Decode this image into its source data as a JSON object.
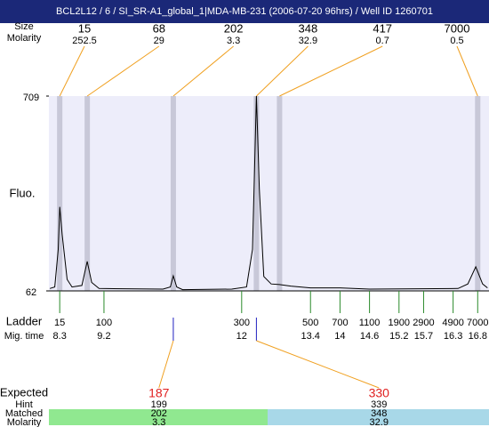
{
  "chart_data": {
    "type": "line",
    "title": "BCL2L12 / 6 / SI_SR-A1_global_1|MDA-MB-231 (2006-07-20 96hrs) / Well ID 1260701",
    "ylabel": "Fluo.",
    "ylim": [
      62,
      709
    ],
    "yticks": [
      62,
      709
    ],
    "xlim": [
      8.08,
      17.03
    ],
    "x": [
      8.1,
      8.2,
      8.27,
      8.3,
      8.35,
      8.45,
      8.55,
      8.75,
      8.86,
      8.95,
      9.1,
      10.4,
      10.55,
      10.61,
      10.68,
      10.8,
      11.8,
      12.1,
      12.22,
      12.3,
      12.36,
      12.45,
      12.6,
      12.77,
      13.0,
      13.4,
      14.0,
      14.6,
      16.4,
      16.6,
      16.76,
      16.9,
      17.0
    ],
    "series": [
      {
        "color": "#000000",
        "values": [
          70,
          75,
          200,
          341,
          250,
          100,
          75,
          80,
          160,
          90,
          70,
          68,
          75,
          112,
          75,
          66,
          68,
          75,
          200,
          709,
          400,
          110,
          85,
          83,
          78,
          72,
          72,
          68,
          70,
          85,
          142,
          85,
          72
        ]
      }
    ],
    "peaks": {
      "size_label": "Size",
      "molarity_label": "Molarity",
      "x": [
        8.3,
        8.86,
        10.61,
        12.3,
        12.77,
        16.8
      ],
      "size": [
        15,
        68,
        202,
        348,
        417,
        7000
      ],
      "molarity": [
        252.5,
        29,
        3.3,
        32.9,
        0.7,
        0.5
      ]
    },
    "ladder": {
      "label": "Ladder",
      "time_label": "Mig. time",
      "size": [
        15,
        100,
        300,
        500,
        700,
        1100,
        1900,
        2900,
        4900,
        7000
      ],
      "x": [
        8.3,
        9.2,
        12,
        13.4,
        14,
        14.6,
        15.2,
        15.7,
        16.3,
        16.8
      ]
    },
    "expected": {
      "label": "Expected",
      "hint_label": "Hint",
      "matched_label": "Matched",
      "molarity_label": "Molarity",
      "values": [
        187,
        330
      ],
      "x": [
        10.61,
        12.3
      ],
      "hint": [
        199,
        339
      ],
      "matched": [
        202,
        348
      ],
      "molarity": [
        3.3,
        32.9
      ]
    }
  }
}
